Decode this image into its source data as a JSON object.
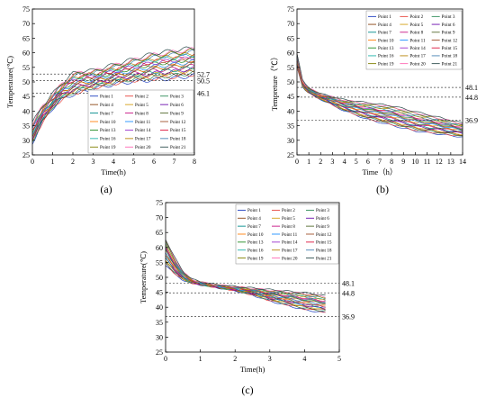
{
  "chart_data": [
    {
      "type": "line",
      "caption": "(a)",
      "xlabel": "Time(h)",
      "ylabel": "Temperature(℃)",
      "xlim": [
        0,
        8
      ],
      "ylim": [
        25,
        75
      ],
      "xticks": [
        "0",
        "1",
        "2",
        "3",
        "4",
        "5",
        "6",
        "7",
        "8"
      ],
      "yticks": [
        "25",
        "30",
        "35",
        "40",
        "45",
        "50",
        "55",
        "60",
        "65",
        "70",
        "75"
      ],
      "grid": false,
      "legend": "bottom-right",
      "reference_lines": [
        {
          "value": 52.7,
          "label": "52.7"
        },
        {
          "value": 50.5,
          "label": "50.5"
        },
        {
          "value": 46.1,
          "label": "46.1"
        }
      ],
      "series_names": [
        "Point 1",
        "Point 2",
        "Point 3",
        "Point 4",
        "Point 5",
        "Point 6",
        "Point 7",
        "Point 8",
        "Point 9",
        "Point 10",
        "Point 11",
        "Point 12",
        "Point 13",
        "Point 14",
        "Point 15",
        "Point 16",
        "Point 17",
        "Point 18",
        "Point 19",
        "Point 20",
        "Point 21"
      ],
      "x": [
        0,
        0.5,
        1,
        1.5,
        2,
        2.5,
        3,
        4,
        5,
        6,
        7,
        8
      ],
      "series_bands": {
        "low": [
          29,
          36,
          41,
          44,
          45.5,
          46.5,
          47.5,
          49,
          50,
          50.5,
          51,
          52
        ],
        "high": [
          36,
          42,
          46,
          50,
          53,
          54,
          54,
          56,
          58,
          60,
          61,
          62
        ]
      }
    },
    {
      "type": "line",
      "caption": "(b)",
      "xlabel": "Time（h）",
      "ylabel": "Tempreture（℃）",
      "xlim": [
        0,
        14
      ],
      "ylim": [
        25,
        75
      ],
      "xticks": [
        "0",
        "1",
        "2",
        "3",
        "4",
        "5",
        "6",
        "7",
        "8",
        "9",
        "10",
        "11",
        "12",
        "13",
        "14"
      ],
      "yticks": [
        "25",
        "30",
        "35",
        "40",
        "45",
        "50",
        "55",
        "60",
        "65",
        "70",
        "75"
      ],
      "grid": false,
      "legend": "top-right",
      "reference_lines": [
        {
          "value": 48.1,
          "label": "48.1"
        },
        {
          "value": 44.8,
          "label": "44.8"
        },
        {
          "value": 36.9,
          "label": "36.9"
        }
      ],
      "series_names": [
        "Point 1",
        "Point 2",
        "Point 3",
        "Point 4",
        "Point 5",
        "Point 6",
        "Point 7",
        "Point 8",
        "Point 9",
        "Point 10",
        "Point 11",
        "Point 12",
        "Point 13",
        "Point 14",
        "Point 15",
        "Point 16",
        "Point 17",
        "Point 18",
        "Point 19",
        "Point 20",
        "Point 21"
      ],
      "x": [
        0,
        0.5,
        1,
        2,
        3,
        4,
        6,
        8,
        10,
        12,
        14
      ],
      "series_bands": {
        "low": [
          55,
          48,
          46,
          44,
          42,
          40,
          37,
          35,
          33,
          32,
          31
        ],
        "high": [
          60,
          50,
          48,
          46,
          45,
          44,
          43,
          42,
          40,
          38,
          36
        ]
      }
    },
    {
      "type": "line",
      "caption": "(c)",
      "xlabel": "Time(h)",
      "ylabel": "Temperature(℃)",
      "xlim": [
        0,
        5
      ],
      "ylim": [
        25,
        75
      ],
      "xticks": [
        "0",
        "1",
        "2",
        "3",
        "4",
        "5"
      ],
      "yticks": [
        "25",
        "30",
        "35",
        "40",
        "45",
        "50",
        "55",
        "60",
        "65",
        "70",
        "75"
      ],
      "grid": false,
      "legend": "top-right",
      "reference_lines": [
        {
          "value": 48.1,
          "label": "48.1"
        },
        {
          "value": 44.8,
          "label": "44.8"
        },
        {
          "value": 36.9,
          "label": "36.9"
        }
      ],
      "series_names": [
        "Point 1",
        "Point 2",
        "Point 3",
        "Point 4",
        "Point 5",
        "Point 6",
        "Point 7",
        "Point 8",
        "Point 9",
        "Point 10",
        "Point 11",
        "Point 12",
        "Point 13",
        "Point 14",
        "Point 15",
        "Point 16",
        "Point 17",
        "Point 18",
        "Point 19",
        "Point 20",
        "Point 21"
      ],
      "x": [
        0,
        0.25,
        0.5,
        0.75,
        1,
        1.5,
        2,
        2.5,
        3,
        3.5,
        4,
        4.6
      ],
      "series_bands": {
        "low": [
          54,
          51,
          49,
          48,
          47.5,
          46.5,
          45.5,
          44,
          42,
          40.5,
          39,
          38
        ],
        "high": [
          63,
          57,
          52,
          49.5,
          48.5,
          47.5,
          47,
          46.5,
          46,
          45.5,
          45,
          44
        ]
      }
    }
  ],
  "colors": [
    "#1f3fbf",
    "#e8453c",
    "#2e8b57",
    "#8b4513",
    "#d4a017",
    "#6a0dad",
    "#008b8b",
    "#c71585",
    "#556b2f",
    "#ff7f0e",
    "#1e90ff",
    "#a0522d",
    "#228b22",
    "#9932cc",
    "#dc143c",
    "#20b2aa",
    "#b8860b",
    "#4682b4",
    "#808000",
    "#ff69b4",
    "#2f4f4f"
  ]
}
